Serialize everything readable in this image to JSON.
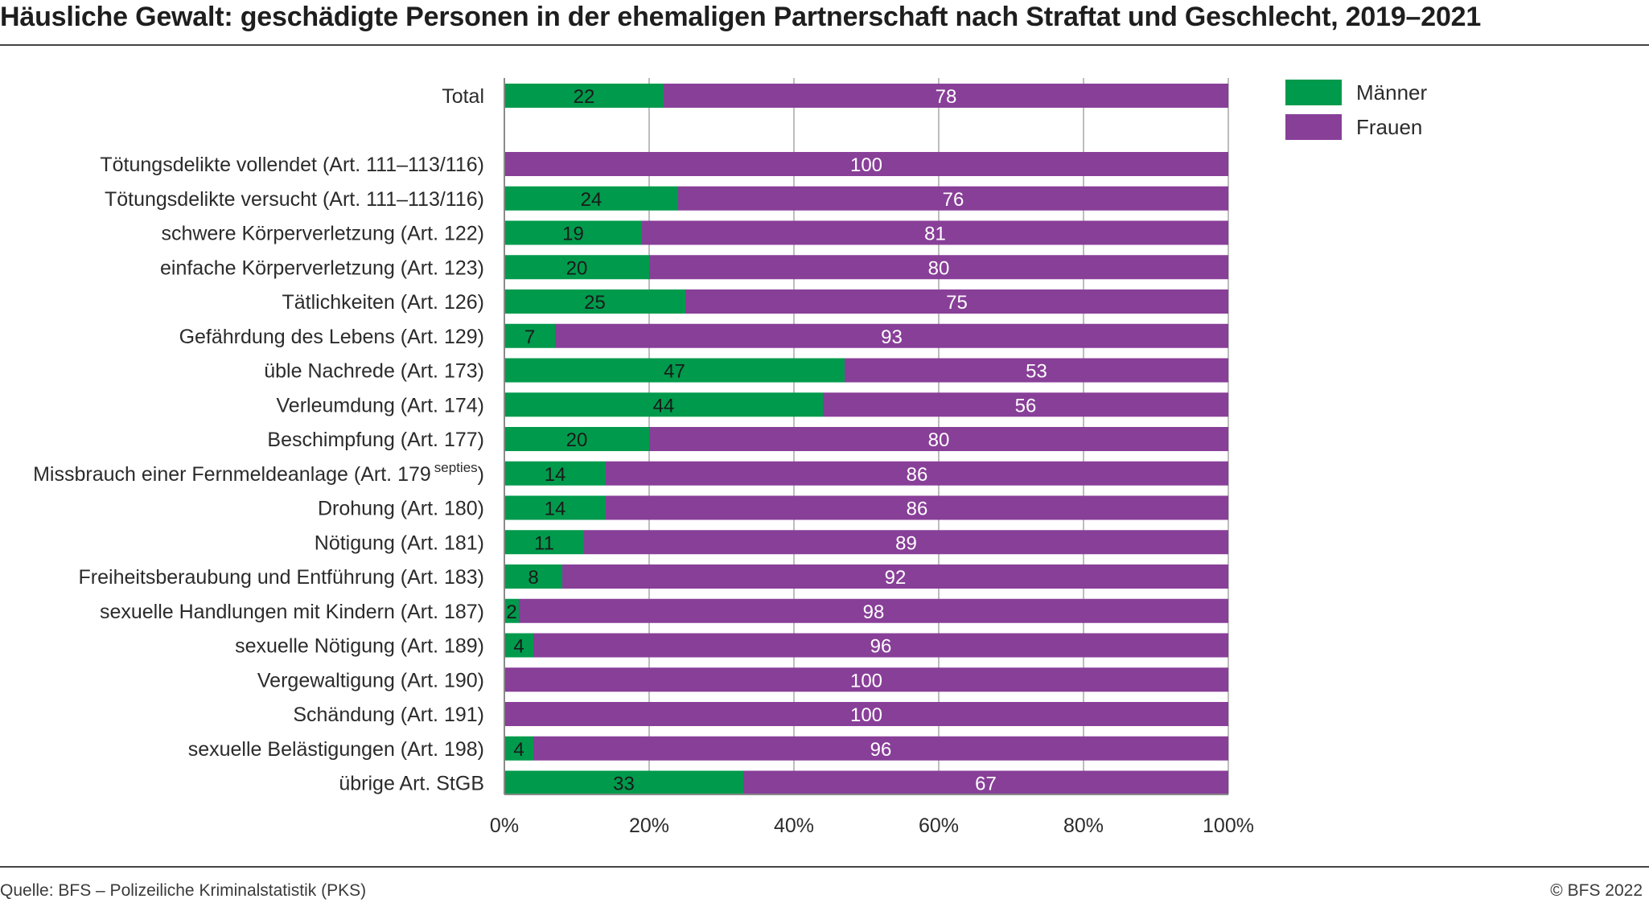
{
  "header": {
    "title": "Häusliche Gewalt: geschädigte Personen in der ehemaligen Partnerschaft nach Straftat und Geschlecht, 2019–2021"
  },
  "footer": {
    "source": "Quelle: BFS – Polizeiliche Kriminalstatistik (PKS)",
    "copyright": "© BFS 2022"
  },
  "colors": {
    "maenner": "#009a4c",
    "frauen": "#883f98",
    "grid": "#bdbdbd",
    "axis": "#8a8a8a"
  },
  "chart_data": {
    "type": "bar",
    "orientation": "horizontal",
    "stacked": "percent",
    "categories": [
      "Total",
      "Tötungsdelikte vollendet (Art. 111–113/116)",
      "Tötungsdelikte versucht (Art. 111–113/116)",
      "schwere Körperverletzung (Art. 122)",
      "einfache Körperverletzung (Art. 123)",
      "Tätlichkeiten (Art. 126)",
      "Gefährdung des Lebens (Art. 129)",
      "üble Nachrede (Art. 173)",
      "Verleumdung (Art. 174)",
      "Beschimpfung (Art. 177)",
      "Missbrauch einer Fernmeldeanlage (Art. 179 septies)",
      "Drohung (Art. 180)",
      "Nötigung (Art. 181)",
      "Freiheitsberaubung und Entführung (Art. 183)",
      "sexuelle Handlungen mit Kindern (Art. 187)",
      "sexuelle Nötigung (Art. 189)",
      "Vergewaltigung (Art. 190)",
      "Schändung (Art. 191)",
      "sexuelle Belästigungen (Art. 198)",
      "übrige Art. StGB"
    ],
    "series": [
      {
        "name": "Männer",
        "color": "#009a4c",
        "values": [
          22,
          0,
          24,
          19,
          20,
          25,
          7,
          47,
          44,
          20,
          14,
          14,
          11,
          8,
          2,
          4,
          0,
          0,
          4,
          33
        ]
      },
      {
        "name": "Frauen",
        "color": "#883f98",
        "values": [
          78,
          100,
          76,
          81,
          80,
          75,
          93,
          53,
          56,
          80,
          86,
          86,
          89,
          92,
          98,
          96,
          100,
          100,
          96,
          67
        ]
      }
    ],
    "xlim": [
      0,
      100
    ],
    "xticks": [
      "0%",
      "20%",
      "40%",
      "60%",
      "80%",
      "100%"
    ],
    "grid": true,
    "legend": "top-right"
  }
}
